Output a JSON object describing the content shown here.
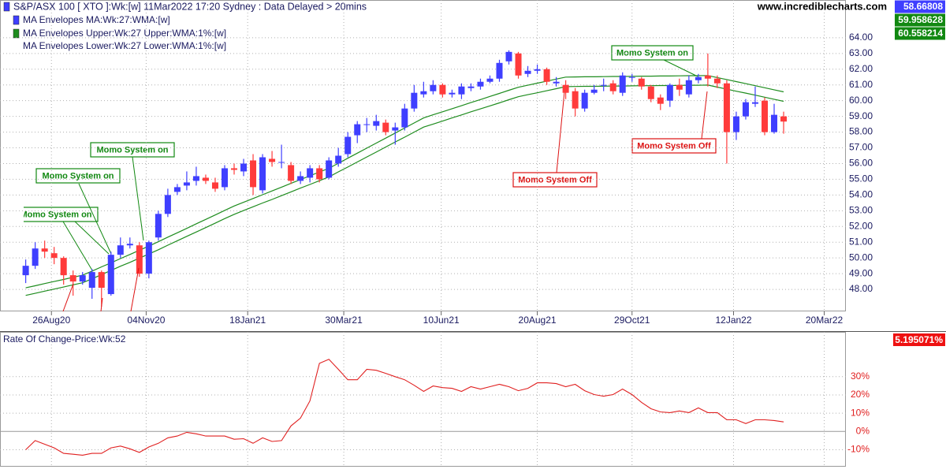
{
  "header": {
    "site": "www.incrediblecharts.com"
  },
  "chart_data": [
    {
      "type": "candlestick",
      "title": "S&P/ASX 100 [ XTO ]:Wk:[w]  11Mar2022 17:20 Sydney : Data Delayed > 20mins",
      "title_color": "#3f3fff",
      "indicator": "MA Envelopes MA:Wk:27:WMA:[w]",
      "indicator_color": "#3f3fff",
      "up_color": "#3f3fff",
      "down_color": "#ff3b3b",
      "x": [
        "2020-08-07",
        "2020-08-14",
        "2020-08-21",
        "2020-08-28",
        "2020-09-04",
        "2020-09-11",
        "2020-09-18",
        "2020-09-25",
        "2020-10-02",
        "2020-10-09",
        "2020-10-16",
        "2020-10-23",
        "2020-10-30",
        "2020-11-06",
        "2020-11-13",
        "2020-11-20",
        "2020-11-27",
        "2020-12-04",
        "2020-12-11",
        "2020-12-18",
        "2020-12-25",
        "2021-01-01",
        "2021-01-08",
        "2021-01-15",
        "2021-01-22",
        "2021-01-29",
        "2021-02-05",
        "2021-02-12",
        "2021-02-19",
        "2021-02-26",
        "2021-03-05",
        "2021-03-12",
        "2021-03-19",
        "2021-03-26",
        "2021-04-02",
        "2021-04-09",
        "2021-04-16",
        "2021-04-23",
        "2021-04-30",
        "2021-05-07",
        "2021-05-14",
        "2021-05-21",
        "2021-05-28",
        "2021-06-04",
        "2021-06-11",
        "2021-06-18",
        "2021-06-25",
        "2021-07-02",
        "2021-07-09",
        "2021-07-16",
        "2021-07-23",
        "2021-07-30",
        "2021-08-06",
        "2021-08-13",
        "2021-08-20",
        "2021-08-27",
        "2021-09-03",
        "2021-09-10",
        "2021-09-17",
        "2021-09-24",
        "2021-10-01",
        "2021-10-08",
        "2021-10-15",
        "2021-10-22",
        "2021-10-29",
        "2021-11-05",
        "2021-11-12",
        "2021-11-19",
        "2021-11-26",
        "2021-12-03",
        "2021-12-10",
        "2021-12-17",
        "2021-12-24",
        "2021-12-31",
        "2022-01-07",
        "2022-01-14",
        "2022-01-21",
        "2022-01-28",
        "2022-02-04",
        "2022-02-11",
        "2022-02-18"
      ],
      "open": [
        48.9,
        49.5,
        50.6,
        50.3,
        50.0,
        48.9,
        48.5,
        48.1,
        49.1,
        47.7,
        50.2,
        50.8,
        50.8,
        49.0,
        51.3,
        52.8,
        54.2,
        54.6,
        54.9,
        55.1,
        54.8,
        54.5,
        55.7,
        55.5,
        56.2,
        54.3,
        56.3,
        56.1,
        55.9,
        54.9,
        55.1,
        55.7,
        55.1,
        56.0,
        56.6,
        57.8,
        58.5,
        58.4,
        58.6,
        58.1,
        58.3,
        59.5,
        60.4,
        60.6,
        61.0,
        60.4,
        60.4,
        60.8,
        60.9,
        61.2,
        61.4,
        62.5,
        63.0,
        61.7,
        61.9,
        62.0,
        61.1,
        61.0,
        60.6,
        59.5,
        60.5,
        61.0,
        61.1,
        60.5,
        61.5,
        61.4,
        60.9,
        60.2,
        60.0,
        61.0,
        60.4,
        61.3,
        61.6,
        61.4,
        61.1,
        58.0,
        59.0,
        59.8,
        60.0,
        58.0,
        59.0
      ],
      "high": [
        49.9,
        51.0,
        51.1,
        50.7,
        50.1,
        49.2,
        49.1,
        49.3,
        49.2,
        50.4,
        51.3,
        51.3,
        51.0,
        51.1,
        53.0,
        54.4,
        54.7,
        55.5,
        55.8,
        55.3,
        55.1,
        55.9,
        56.0,
        56.3,
        56.6,
        56.6,
        56.8,
        57.2,
        56.1,
        55.5,
        55.9,
        55.9,
        56.4,
        57.0,
        58.0,
        58.7,
        58.9,
        59.1,
        58.8,
        58.6,
        59.8,
        61.0,
        61.2,
        61.3,
        61.1,
        60.7,
        61.1,
        61.1,
        61.4,
        61.6,
        62.6,
        63.2,
        63.1,
        62.2,
        62.3,
        62.1,
        61.5,
        61.3,
        60.8,
        60.7,
        61.0,
        61.4,
        61.3,
        61.8,
        61.7,
        61.5,
        61.0,
        60.4,
        61.1,
        61.4,
        61.6,
        61.7,
        63.0,
        61.6,
        61.3,
        59.3,
        60.1,
        60.9,
        60.2,
        59.8,
        59.3
      ],
      "low": [
        48.4,
        49.3,
        50.0,
        49.6,
        48.3,
        47.6,
        48.3,
        47.4,
        46.9,
        47.6,
        50.0,
        50.6,
        48.8,
        48.7,
        51.1,
        52.6,
        54.0,
        54.3,
        54.6,
        54.7,
        54.2,
        54.3,
        55.3,
        55.2,
        54.0,
        54.1,
        55.8,
        55.7,
        54.7,
        54.7,
        54.8,
        54.8,
        55.0,
        55.8,
        56.4,
        57.3,
        58.0,
        58.1,
        57.8,
        57.2,
        58.1,
        59.3,
        60.2,
        60.4,
        60.2,
        60.2,
        60.1,
        60.6,
        60.7,
        61.1,
        61.2,
        62.3,
        61.4,
        61.5,
        61.7,
        61.0,
        60.9,
        60.1,
        59.0,
        59.3,
        60.4,
        60.6,
        60.4,
        60.3,
        61.2,
        60.7,
        59.9,
        59.4,
        59.6,
        60.3,
        60.2,
        61.1,
        60.9,
        60.8,
        56.0,
        57.5,
        58.8,
        59.6,
        57.8,
        57.9,
        57.9
      ],
      "close": [
        49.5,
        50.6,
        50.4,
        50.0,
        48.9,
        48.5,
        48.9,
        49.1,
        48.1,
        50.2,
        50.8,
        50.9,
        49.0,
        51.0,
        52.8,
        54.0,
        54.5,
        54.8,
        55.2,
        54.9,
        54.4,
        55.7,
        55.6,
        56.0,
        54.5,
        56.4,
        56.1,
        56.1,
        54.9,
        55.2,
        55.7,
        55.0,
        56.2,
        56.5,
        57.7,
        58.5,
        58.5,
        58.7,
        58.0,
        58.3,
        59.5,
        60.5,
        60.6,
        61.0,
        60.4,
        60.5,
        60.9,
        60.9,
        61.2,
        61.4,
        62.4,
        63.1,
        61.6,
        61.9,
        62.0,
        61.2,
        61.2,
        60.5,
        59.5,
        60.5,
        60.7,
        61.0,
        60.6,
        61.6,
        61.5,
        60.9,
        60.1,
        59.8,
        61.0,
        60.7,
        61.3,
        61.5,
        61.4,
        61.1,
        58.0,
        59.0,
        59.9,
        59.9,
        58.0,
        59.1,
        58.67
      ],
      "series": [
        {
          "name": "MA Envelopes Upper:Wk:27 Upper:WMA:1%:[w]",
          "color": "#1e8c1e",
          "values": [
            48.1,
            48.23,
            48.37,
            48.5,
            48.63,
            48.77,
            48.9,
            49.16,
            49.43,
            49.69,
            49.96,
            50.22,
            50.49,
            50.75,
            51.03,
            51.32,
            51.6,
            51.88,
            52.17,
            52.45,
            52.73,
            53.02,
            53.3,
            53.54,
            53.78,
            54.02,
            54.26,
            54.5,
            54.74,
            54.98,
            55.22,
            55.46,
            55.7,
            56.02,
            56.34,
            56.66,
            56.98,
            57.3,
            57.62,
            57.94,
            58.26,
            58.58,
            58.9,
            59.1,
            59.29,
            59.49,
            59.68,
            59.88,
            60.07,
            60.27,
            60.46,
            60.66,
            60.85,
            60.98,
            61.11,
            61.24,
            61.37,
            61.5,
            61.51,
            61.52,
            61.52,
            61.53,
            61.54,
            61.54,
            61.55,
            61.56,
            61.56,
            61.57,
            61.57,
            61.58,
            61.59,
            61.59,
            61.6,
            61.47,
            61.34,
            61.21,
            61.08,
            60.95,
            60.82,
            60.69,
            60.56
          ]
        },
        {
          "name": "MA Envelopes Lower:Wk:27 Lower:WMA:1%:[w]",
          "color": "#1e8c1e",
          "values": [
            47.62,
            47.75,
            47.89,
            48.02,
            48.15,
            48.29,
            48.42,
            48.67,
            48.94,
            49.2,
            49.47,
            49.72,
            49.99,
            50.25,
            50.52,
            50.81,
            51.09,
            51.37,
            51.65,
            51.93,
            52.21,
            52.5,
            52.77,
            53.01,
            53.25,
            53.49,
            53.72,
            53.96,
            54.2,
            54.44,
            54.67,
            54.91,
            55.15,
            55.47,
            55.78,
            56.1,
            56.42,
            56.73,
            57.05,
            57.37,
            57.68,
            58.0,
            58.32,
            58.51,
            58.7,
            58.9,
            59.09,
            59.29,
            59.48,
            59.67,
            59.86,
            60.06,
            60.25,
            60.38,
            60.5,
            60.63,
            60.76,
            60.89,
            60.9,
            60.91,
            60.91,
            60.92,
            60.93,
            60.93,
            60.94,
            60.95,
            60.95,
            60.96,
            60.96,
            60.97,
            60.98,
            60.98,
            60.99,
            60.86,
            60.73,
            60.6,
            60.48,
            60.35,
            60.22,
            60.09,
            59.96
          ]
        }
      ],
      "last_values": [
        {
          "value": 58.66808,
          "color": "#3f3fff"
        },
        {
          "value": 59.958628,
          "color": "#118811"
        },
        {
          "value": 60.558214,
          "color": "#118811"
        }
      ],
      "xlim": [
        "2020-07-19",
        "2022-04-05"
      ],
      "xticks": [
        {
          "value": "2020-08-26",
          "label": "26Aug20"
        },
        {
          "value": "2020-11-04",
          "label": "04Nov20"
        },
        {
          "value": "2021-01-18",
          "label": "18Jan21"
        },
        {
          "value": "2021-03-30",
          "label": "30Mar21"
        },
        {
          "value": "2021-06-10",
          "label": "10Jun21"
        },
        {
          "value": "2021-08-20",
          "label": "20Aug21"
        },
        {
          "value": "2021-10-29",
          "label": "29Oct21"
        },
        {
          "value": "2022-01-12",
          "label": "12Jan22"
        },
        {
          "value": "2022-03-20",
          "label": "20Mar22"
        }
      ],
      "ylim": [
        46.6,
        66.4
      ],
      "yticks": [
        {
          "value": 48,
          "label": "48.00"
        },
        {
          "value": 49,
          "label": "49.00"
        },
        {
          "value": 50,
          "label": "50.00"
        },
        {
          "value": 51,
          "label": "51.00"
        },
        {
          "value": 52,
          "label": "52.00"
        },
        {
          "value": 53,
          "label": "53.00"
        },
        {
          "value": 54,
          "label": "54.00"
        },
        {
          "value": 55,
          "label": "55.00"
        },
        {
          "value": 56,
          "label": "56.00"
        },
        {
          "value": 57,
          "label": "57.00"
        },
        {
          "value": 58,
          "label": "58.00"
        },
        {
          "value": 59,
          "label": "59.00"
        },
        {
          "value": 60,
          "label": "60.00"
        },
        {
          "value": 61,
          "label": "61.00"
        },
        {
          "value": 62,
          "label": "62.00"
        },
        {
          "value": 63,
          "label": "63.00"
        },
        {
          "value": 64,
          "label": "64.00"
        }
      ],
      "grid": true,
      "annotations": [
        {
          "text": "Momo System on",
          "color": "#118811"
        },
        {
          "text": "Momo System on",
          "color": "#118811"
        },
        {
          "text": "Momo System on",
          "color": "#118811"
        },
        {
          "text": "Momo System on",
          "color": "#118811"
        },
        {
          "text": "Momo System Off",
          "color": "#dd1111"
        },
        {
          "text": "Momo System Off",
          "color": "#dd1111"
        }
      ]
    },
    {
      "type": "line",
      "title": "Rate Of Change-Price:Wk:52",
      "color": "#e02020",
      "values": [
        -10,
        -5,
        -7,
        -9,
        -12,
        -12.5,
        -13,
        -12,
        -12,
        -9,
        -8,
        -9.5,
        -11.5,
        -8.5,
        -6.5,
        -3.5,
        -2.5,
        -0.5,
        -1.3,
        -2.5,
        -2.5,
        -2.5,
        -4.3,
        -4,
        -6.5,
        -3.5,
        -5.5,
        -5,
        3,
        7.3,
        16.7,
        37.3,
        39.5,
        34,
        28.3,
        28.3,
        34,
        33.5,
        31.8,
        30,
        28.3,
        25.3,
        21.9,
        24.9,
        24,
        23.6,
        21.9,
        24.5,
        23.2,
        24.5,
        25.8,
        24.5,
        22.3,
        23.6,
        26.6,
        26.6,
        26.2,
        24.5,
        25.8,
        22.3,
        20.2,
        19.3,
        20.2,
        23.2,
        20.2,
        15.9,
        12.4,
        10.7,
        10.3,
        11.2,
        10.3,
        12.9,
        10.3,
        10.3,
        6.4,
        6.4,
        4.3,
        6.4,
        6.4,
        6,
        5.2
      ],
      "last_value": {
        "value": 5.195071,
        "label": "5.195071%",
        "color": "#ee1111"
      },
      "ylim": [
        -19.3,
        54.5
      ],
      "yticks": [
        {
          "value": -10,
          "label": "-10%"
        },
        {
          "value": 0,
          "label": "0%"
        },
        {
          "value": 10,
          "label": "10%"
        },
        {
          "value": 20,
          "label": "20%"
        },
        {
          "value": 30,
          "label": "30%"
        }
      ],
      "grid": true
    }
  ]
}
